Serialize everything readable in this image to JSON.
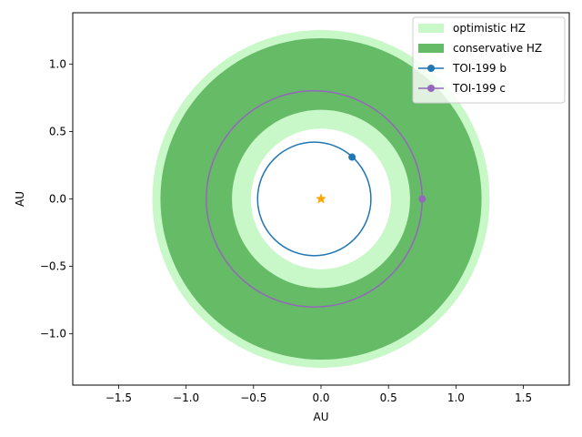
{
  "chart_data": {
    "type": "scatter",
    "title": "",
    "xlabel": "AU",
    "ylabel": "AU",
    "xlim": [
      -1.84,
      1.84
    ],
    "ylim": [
      -1.38,
      1.38
    ],
    "xticks": [
      -1.5,
      -1.0,
      -0.5,
      0.0,
      0.5,
      1.0,
      1.5
    ],
    "xtick_labels": [
      "−1.5",
      "−1.0",
      "−0.5",
      "0.0",
      "0.5",
      "1.0",
      "1.5"
    ],
    "yticks": [
      -1.0,
      -0.5,
      0.0,
      0.5,
      1.0
    ],
    "ytick_labels": [
      "−1.0",
      "−0.5",
      "0.0",
      "0.5",
      "1.0"
    ],
    "grid": false,
    "legend_position": "top-right",
    "habitable_zones": [
      {
        "name": "optimistic HZ",
        "inner_au": 0.52,
        "outer_au": 1.25,
        "color": "#c8f7c8"
      },
      {
        "name": "conservative HZ",
        "inner_au": 0.66,
        "outer_au": 1.19,
        "color": "#66bb66"
      }
    ],
    "star": {
      "x": 0.0,
      "y": 0.0,
      "color": "#ffa500",
      "marker": "star"
    },
    "orbits": [
      {
        "name": "TOI-199 b",
        "center_x": -0.05,
        "center_y": 0.0,
        "semi_major": 0.42,
        "semi_minor": 0.42,
        "planet_x": 0.23,
        "planet_y": 0.31,
        "color": "#1f77b4"
      },
      {
        "name": "TOI-199 c",
        "center_x": -0.05,
        "center_y": 0.0,
        "semi_major": 0.8,
        "semi_minor": 0.8,
        "planet_x": 0.75,
        "planet_y": 0.0,
        "color": "#9467bd"
      }
    ]
  }
}
